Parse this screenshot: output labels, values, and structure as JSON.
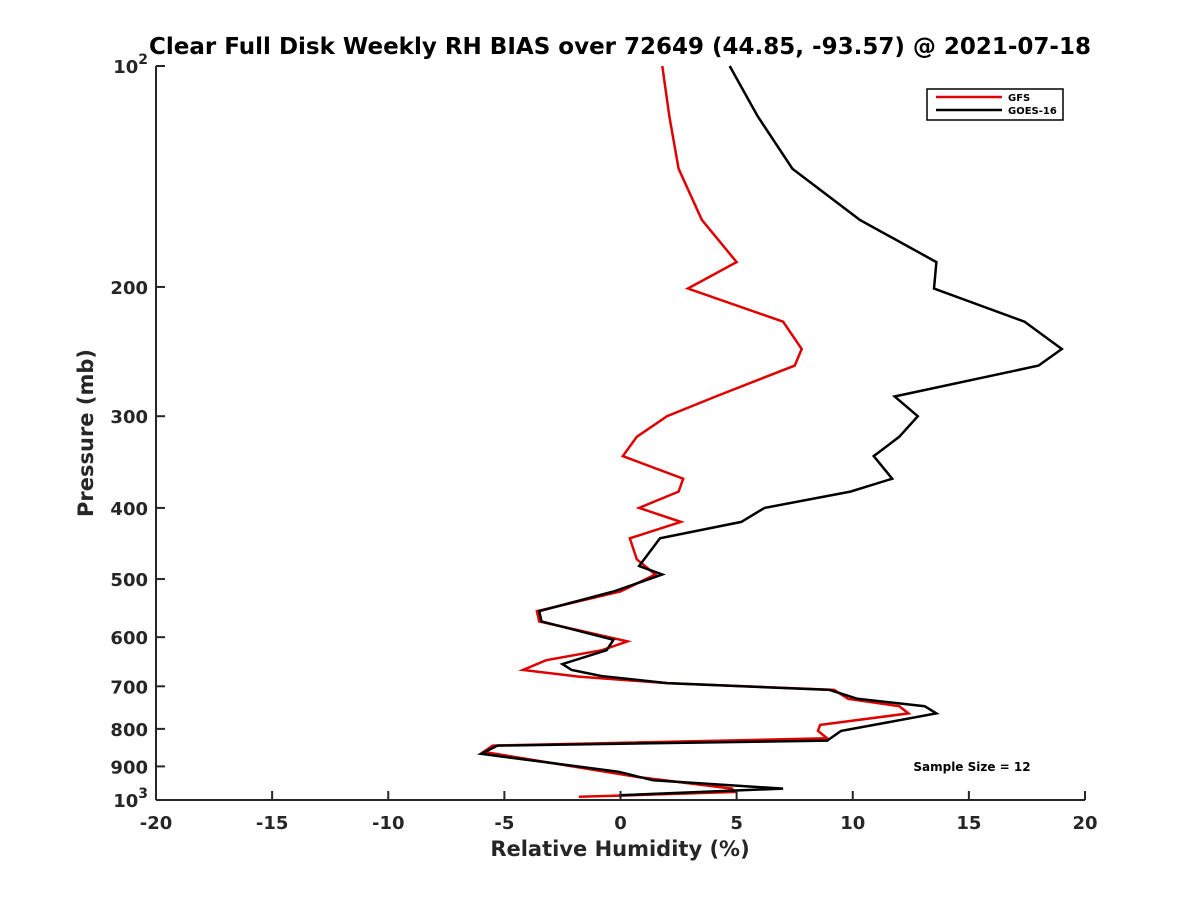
{
  "chart_data": {
    "type": "line",
    "title": "Clear Full Disk Weekly RH BIAS over 72649 (44.85, -93.57) @ 2021-07-18",
    "xlabel": "Relative Humidity (%)",
    "ylabel": "Pressure (mb)",
    "xlim": [
      -20,
      20
    ],
    "ylim": [
      1000,
      100
    ],
    "yscale": "log",
    "y_reversed": true,
    "grid": false,
    "legend_position": "top-right",
    "x_ticks": [
      "-20",
      "-15",
      "-10",
      "-5",
      "0",
      "5",
      "10",
      "15",
      "20"
    ],
    "y_ticks": [
      {
        "value": 100,
        "base": "10",
        "exp": "2"
      },
      {
        "value": 200,
        "base": "200",
        "exp": ""
      },
      {
        "value": 300,
        "base": "300",
        "exp": ""
      },
      {
        "value": 400,
        "base": "400",
        "exp": ""
      },
      {
        "value": 500,
        "base": "500",
        "exp": ""
      },
      {
        "value": 600,
        "base": "600",
        "exp": ""
      },
      {
        "value": 700,
        "base": "700",
        "exp": ""
      },
      {
        "value": 800,
        "base": "800",
        "exp": ""
      },
      {
        "value": 900,
        "base": "900",
        "exp": ""
      },
      {
        "value": 1000,
        "base": "10",
        "exp": "3"
      }
    ],
    "annotation": "Sample Size = 12",
    "series": [
      {
        "name": "GFS",
        "color": "#e00000",
        "points": [
          [
            1.8,
            100
          ],
          [
            2.1,
            117
          ],
          [
            2.5,
            138
          ],
          [
            3.5,
            162
          ],
          [
            5.0,
            185
          ],
          [
            2.9,
            201
          ],
          [
            7.0,
            223
          ],
          [
            7.8,
            243
          ],
          [
            7.5,
            256
          ],
          [
            4.1,
            282
          ],
          [
            2.0,
            300
          ],
          [
            0.7,
            320
          ],
          [
            0.1,
            340
          ],
          [
            2.7,
            365
          ],
          [
            2.5,
            380
          ],
          [
            0.8,
            400
          ],
          [
            2.6,
            418
          ],
          [
            0.4,
            440
          ],
          [
            0.7,
            470
          ],
          [
            1.5,
            493
          ],
          [
            0.0,
            520
          ],
          [
            -3.6,
            553
          ],
          [
            -3.5,
            571
          ],
          [
            0.3,
            608
          ],
          [
            -0.8,
            625
          ],
          [
            -3.2,
            645
          ],
          [
            -4.2,
            665
          ],
          [
            -1.8,
            679
          ],
          [
            2.0,
            693
          ],
          [
            9.2,
            708
          ],
          [
            9.8,
            728
          ],
          [
            12.0,
            745
          ],
          [
            12.4,
            762
          ],
          [
            8.6,
            790
          ],
          [
            8.5,
            805
          ],
          [
            8.9,
            824
          ],
          [
            -5.5,
            843
          ],
          [
            -5.9,
            860
          ],
          [
            0.7,
            930
          ],
          [
            4.8,
            965
          ],
          [
            4.9,
            975
          ],
          [
            0.5,
            985
          ],
          [
            -1.8,
            990
          ]
        ]
      },
      {
        "name": "GOES-16",
        "color": "#000000",
        "points": [
          [
            4.7,
            100
          ],
          [
            5.9,
            117
          ],
          [
            7.4,
            138
          ],
          [
            10.3,
            162
          ],
          [
            13.6,
            185
          ],
          [
            13.5,
            201
          ],
          [
            17.4,
            223
          ],
          [
            19.0,
            243
          ],
          [
            18.0,
            256
          ],
          [
            11.8,
            282
          ],
          [
            12.8,
            300
          ],
          [
            12.0,
            320
          ],
          [
            10.9,
            340
          ],
          [
            11.7,
            365
          ],
          [
            9.9,
            380
          ],
          [
            6.2,
            400
          ],
          [
            5.2,
            418
          ],
          [
            1.7,
            440
          ],
          [
            0.8,
            480
          ],
          [
            1.8,
            493
          ],
          [
            -0.3,
            520
          ],
          [
            -3.5,
            553
          ],
          [
            -3.4,
            571
          ],
          [
            -0.3,
            605
          ],
          [
            -0.6,
            625
          ],
          [
            -2.5,
            653
          ],
          [
            -2.1,
            665
          ],
          [
            -0.8,
            678
          ],
          [
            2.0,
            693
          ],
          [
            9.0,
            708
          ],
          [
            10.2,
            728
          ],
          [
            13.1,
            745
          ],
          [
            13.6,
            762
          ],
          [
            9.5,
            805
          ],
          [
            8.9,
            830
          ],
          [
            -5.3,
            843
          ],
          [
            -6.0,
            865
          ],
          [
            -0.1,
            915
          ],
          [
            1.4,
            940
          ],
          [
            7.0,
            965
          ],
          [
            0.0,
            985
          ],
          [
            0.0,
            990
          ]
        ]
      }
    ]
  }
}
